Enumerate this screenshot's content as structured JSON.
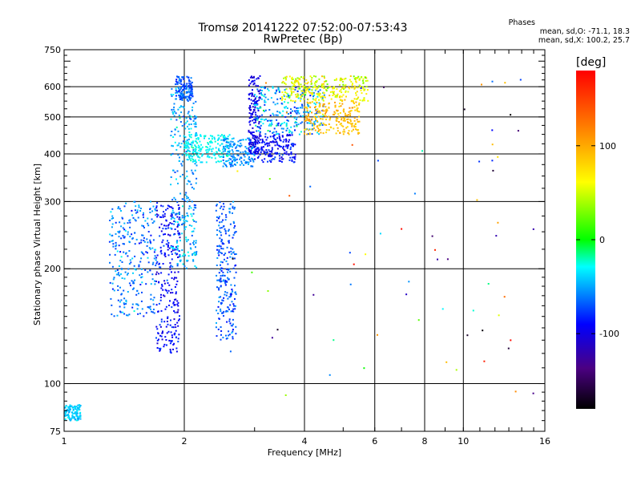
{
  "chart_data": {
    "type": "scatter",
    "title": "Tromsø 20141222 07:52:00-07:53:43",
    "subtitle": "RwPretec (Bp)",
    "xlabel": "Frequency [MHz]",
    "ylabel": "Stationary phase Virtual Height [km]",
    "x_scale": "log",
    "y_scale": "log",
    "xlim": [
      1,
      16
    ],
    "ylim": [
      75,
      750
    ],
    "x_ticks": [
      "1",
      "2",
      "4",
      "6",
      "8",
      "10",
      "16"
    ],
    "x_tick_values": [
      1,
      2,
      4,
      6,
      8,
      10,
      16
    ],
    "y_ticks": [
      "75",
      "100",
      "200",
      "300",
      "400",
      "500",
      "600",
      "750"
    ],
    "y_tick_values": [
      75,
      100,
      200,
      300,
      400,
      500,
      600,
      750
    ],
    "grid": true,
    "legend": {
      "title": "Phases",
      "lines": [
        "mean, sd,O: -71.1, 18.3",
        "mean, sd,X: 100.2, 25.7"
      ],
      "position": "top-right"
    },
    "colorbar": {
      "label": "[deg]",
      "min": -180,
      "max": 180,
      "ticks": [
        "100",
        "0",
        "-100"
      ],
      "tick_values": [
        100,
        0,
        -100
      ]
    },
    "clusters": [
      {
        "fmin": 1.7,
        "fmax": 1.95,
        "hmin": 120,
        "hmax": 300,
        "phase": -90,
        "spread": 30
      },
      {
        "fmin": 1.85,
        "fmax": 2.15,
        "hmin": 200,
        "hmax": 600,
        "phase": -50,
        "spread": 40
      },
      {
        "fmin": 1.9,
        "fmax": 2.1,
        "hmin": 550,
        "hmax": 640,
        "phase": -70,
        "spread": 25
      },
      {
        "fmin": 1.3,
        "fmax": 1.7,
        "hmin": 150,
        "hmax": 300,
        "phase": -60,
        "spread": 40
      },
      {
        "fmin": 2.0,
        "fmax": 2.6,
        "hmin": 380,
        "hmax": 450,
        "phase": -30,
        "spread": 20
      },
      {
        "fmin": 2.5,
        "fmax": 3.0,
        "hmin": 370,
        "hmax": 440,
        "phase": -55,
        "spread": 25
      },
      {
        "fmin": 2.4,
        "fmax": 2.7,
        "hmin": 130,
        "hmax": 300,
        "phase": -70,
        "spread": 35
      },
      {
        "fmin": 2.9,
        "fmax": 3.1,
        "hmin": 400,
        "hmax": 640,
        "phase": -100,
        "spread": 20
      },
      {
        "fmin": 3.0,
        "fmax": 3.8,
        "hmin": 380,
        "hmax": 450,
        "phase": -90,
        "spread": 30
      },
      {
        "fmin": 3.0,
        "fmax": 4.5,
        "hmin": 450,
        "hmax": 600,
        "phase": -50,
        "spread": 60
      },
      {
        "fmin": 3.5,
        "fmax": 5.8,
        "hmin": 550,
        "hmax": 640,
        "phase": 60,
        "spread": 50
      },
      {
        "fmin": 4.0,
        "fmax": 5.5,
        "hmin": 450,
        "hmax": 550,
        "phase": 90,
        "spread": 30
      },
      {
        "fmin": 1.0,
        "fmax": 1.1,
        "hmin": 80,
        "hmax": 88,
        "phase": -40,
        "spread": 20
      }
    ]
  }
}
